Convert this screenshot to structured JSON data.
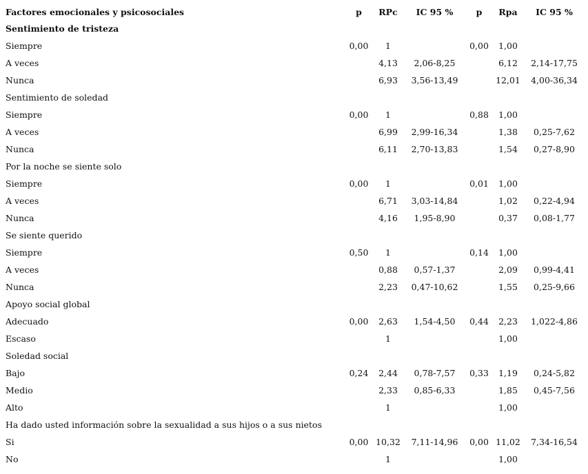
{
  "header": {
    "factor": "Factores emocionales y psicosociales",
    "p1": "p",
    "rpc": "RPc",
    "ic1": "IC 95 %",
    "p2": "p",
    "rpa": "Rpa",
    "ic2": "IC 95 %"
  },
  "rows": [
    {
      "label": "Sentimiento de tristeza",
      "group": true,
      "bold": true
    },
    {
      "label": "Siempre",
      "p1": "0,00",
      "rpc": "1",
      "ic1": "",
      "p2": "0,00",
      "rpa": "1,00",
      "ic2": ""
    },
    {
      "label": "A veces",
      "p1": "",
      "rpc": "4,13",
      "ic1": "2,06-8,25",
      "p2": "",
      "rpa": "6,12",
      "ic2": "2,14-17,75"
    },
    {
      "label": "Nunca",
      "p1": "",
      "rpc": "6,93",
      "ic1": "3,56-13,49",
      "p2": "",
      "rpa": "12,01",
      "ic2": "4,00-36,34"
    },
    {
      "label": "Sentimiento de soledad",
      "group": true
    },
    {
      "label": "Siempre",
      "p1": "0,00",
      "rpc": "1",
      "ic1": "",
      "p2": "0,88",
      "rpa": "1,00",
      "ic2": ""
    },
    {
      "label": "A veces",
      "p1": "",
      "rpc": "6,99",
      "ic1": "2,99-16,34",
      "p2": "",
      "rpa": "1,38",
      "ic2": "0,25-7,62"
    },
    {
      "label": "Nunca",
      "p1": "",
      "rpc": "6,11",
      "ic1": "2,70-13,83",
      "p2": "",
      "rpa": "1,54",
      "ic2": "0,27-8,90"
    },
    {
      "label": "Por la noche se siente solo",
      "group": true
    },
    {
      "label": "Siempre",
      "p1": "0,00",
      "rpc": "1",
      "ic1": "",
      "p2": "0,01",
      "rpa": "1,00",
      "ic2": ""
    },
    {
      "label": "A veces",
      "p1": "",
      "rpc": "6,71",
      "ic1": "3,03-14,84",
      "p2": "",
      "rpa": "1,02",
      "ic2": "0,22-4,94"
    },
    {
      "label": "Nunca",
      "p1": "",
      "rpc": "4,16",
      "ic1": "1,95-8,90",
      "p2": "",
      "rpa": "0,37",
      "ic2": "0,08-1,77"
    },
    {
      "label": "Se siente querido",
      "group": true
    },
    {
      "label": "Siempre",
      "p1": "0,50",
      "rpc": "1",
      "ic1": "",
      "p2": "0,14",
      "rpa": "1,00",
      "ic2": ""
    },
    {
      "label": "A veces",
      "p1": "",
      "rpc": "0,88",
      "ic1": "0,57-1,37",
      "p2": "",
      "rpa": "2,09",
      "ic2": "0,99-4,41"
    },
    {
      "label": "Nunca",
      "p1": "",
      "rpc": "2,23",
      "ic1": "0,47-10,62",
      "p2": "",
      "rpa": "1,55",
      "ic2": "0,25-9,66"
    },
    {
      "label": "Apoyo social global",
      "group": true
    },
    {
      "label": "Adecuado",
      "p1": "0,00",
      "rpc": "2,63",
      "ic1": "1,54-4,50",
      "p2": "0,44",
      "rpa": "2,23",
      "ic2": "1,022-4,86"
    },
    {
      "label": "Escaso",
      "p1": "",
      "rpc": "1",
      "ic1": "",
      "p2": "",
      "rpa": "1,00",
      "ic2": ""
    },
    {
      "label": "Soledad social",
      "group": true
    },
    {
      "label": "Bajo",
      "p1": "0,24",
      "rpc": "2,44",
      "ic1": "0,78-7,57",
      "p2": "0,33",
      "rpa": "1,19",
      "ic2": "0,24-5,82"
    },
    {
      "label": "Medio",
      "p1": "",
      "rpc": "2,33",
      "ic1": "0,85-6,33",
      "p2": "",
      "rpa": "1,85",
      "ic2": "0,45-7,56"
    },
    {
      "label": "Alto",
      "p1": "",
      "rpc": "1",
      "ic1": "",
      "p2": "",
      "rpa": "1,00",
      "ic2": ""
    },
    {
      "label": "Ha dado usted información sobre la sexualidad a sus hijos o a sus nietos",
      "group": true
    },
    {
      "label": "Si",
      "p1": "0,00",
      "rpc": "10,32",
      "ic1": "7,11-14,96",
      "p2": "0,00",
      "rpa": "11,02",
      "ic2": "7,34-16,54"
    },
    {
      "label": "No",
      "p1": "",
      "rpc": "1",
      "ic1": "",
      "p2": "",
      "rpa": "1,00",
      "ic2": ""
    }
  ]
}
